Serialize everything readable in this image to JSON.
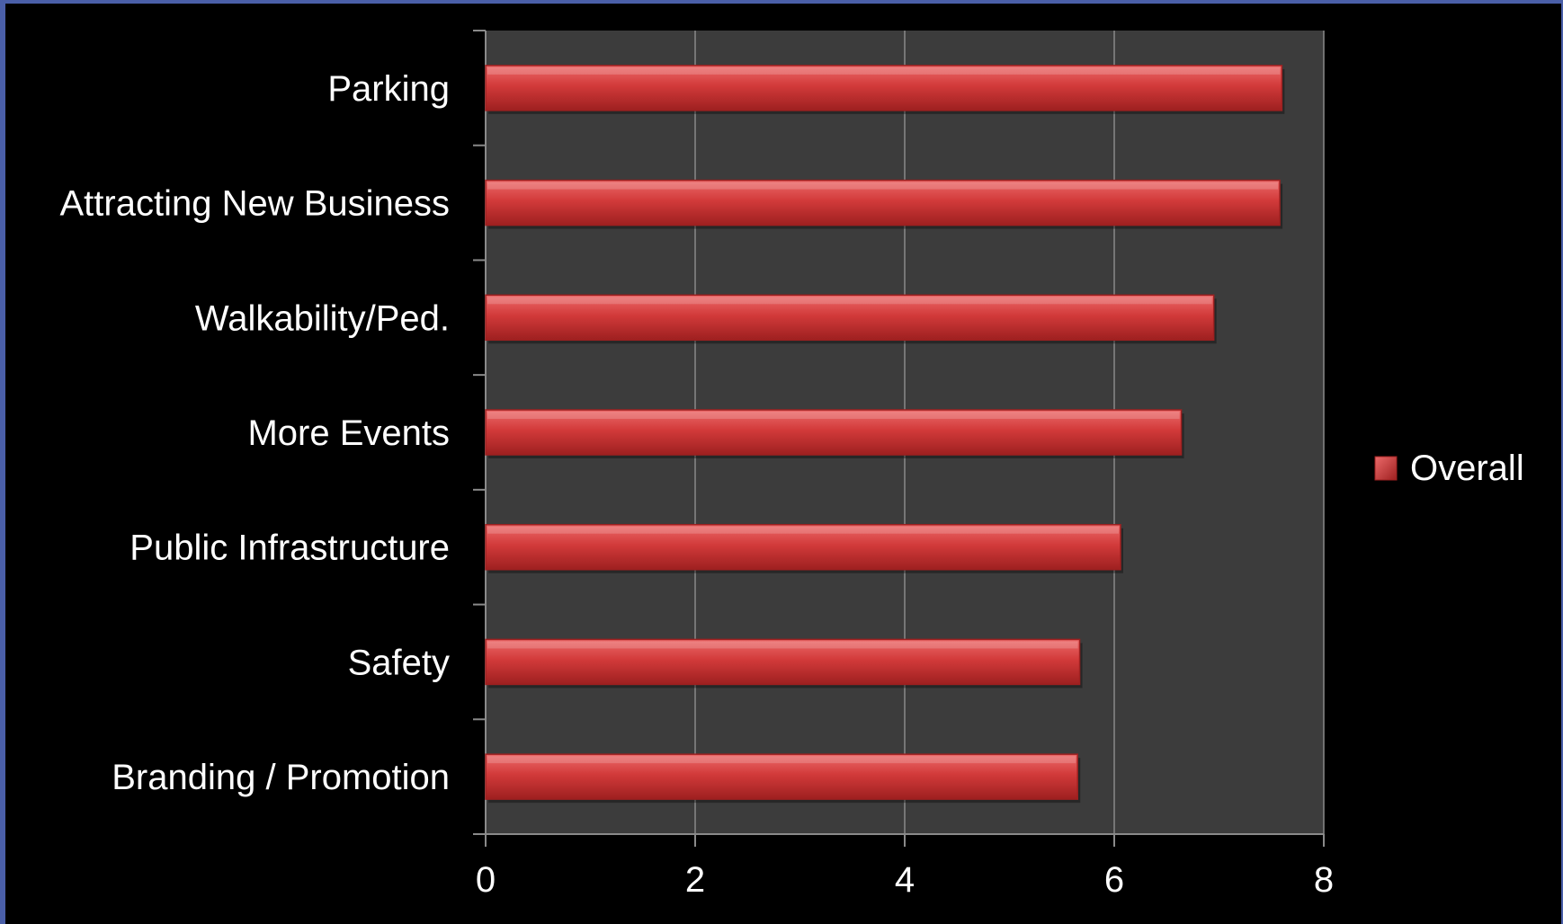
{
  "chart_data": {
    "type": "bar",
    "orientation": "horizontal",
    "categories": [
      "Parking",
      "Attracting New Business",
      "Walkability/Ped.",
      "More Events",
      "Public Infrastructure",
      "Safety",
      "Branding / Promotion"
    ],
    "series": [
      {
        "name": "Overall",
        "values": [
          7.6,
          7.58,
          6.95,
          6.64,
          6.06,
          5.67,
          5.65
        ]
      }
    ],
    "xlim": [
      0,
      8
    ],
    "xticks": [
      "0",
      "2",
      "4",
      "6",
      "8"
    ],
    "grid": "vertical",
    "legend": "right",
    "colors": {
      "bar": "#d23a3a",
      "bar_light": "#ec6a6a",
      "bar_dark": "#9e2020",
      "plot_bg": "#3c3c3c",
      "page_bg": "#000000",
      "border": "#4a5fa8",
      "grid": "#8a8a8a",
      "text": "#ffffff"
    }
  }
}
